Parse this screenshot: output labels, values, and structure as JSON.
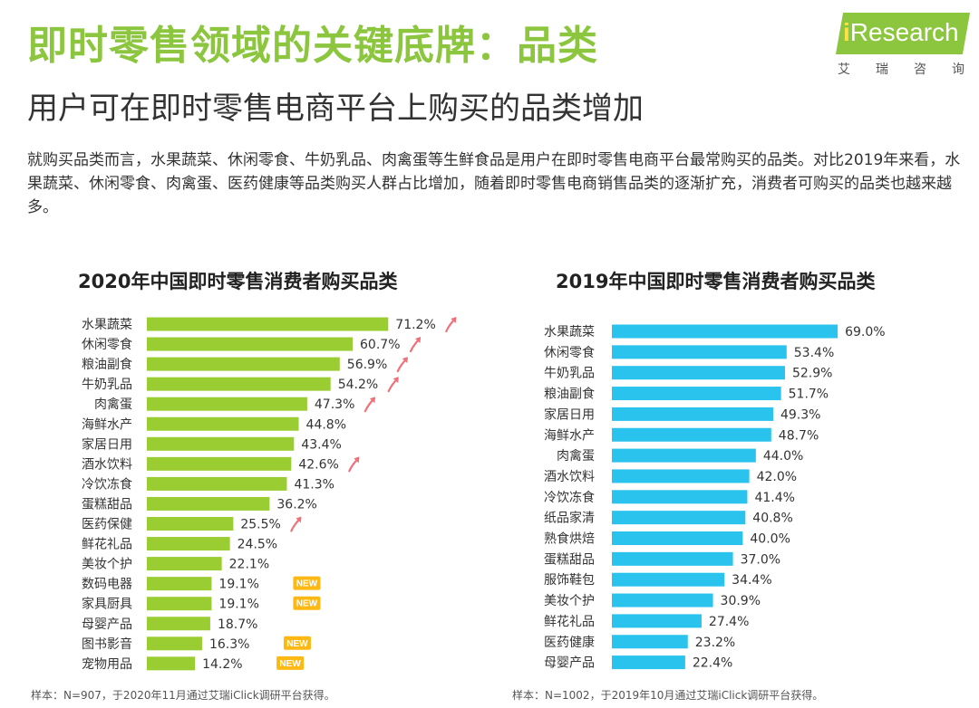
{
  "header": {
    "title": "即时零售领域的关键底牌：品类",
    "subtitle": "用户可在即时零售电商平台上购买的品类增加"
  },
  "logo": {
    "word_prefix": "i",
    "word_rest": "Research",
    "sub_chars": [
      "艾",
      "瑞",
      "咨",
      "询"
    ]
  },
  "intro": "就购买品类而言，水果蔬菜、休闲零食、牛奶乳品、肉禽蛋等生鲜食品是用户在即时零售电商平台最常购买的品类。对比2019年来看，水果蔬菜、休闲零食、肉禽蛋、医药健康等品类购买人群占比增加，随着即时零售电商销售品类的逐渐扩充，消费者可购买的品类也越来越多。",
  "colors": {
    "brand_green": "#8cc63f",
    "bar_2020": "#9acd32",
    "bar_2019": "#29c3ee",
    "arrow_up": "#f0707a",
    "new_badge": "#fdb813"
  },
  "chart_data": [
    {
      "type": "bar",
      "orientation": "horizontal",
      "title": "2020年中国即时零售消费者购买品类",
      "categories": [
        "水果蔬菜",
        "休闲零食",
        "粮油副食",
        "牛奶乳品",
        "肉禽蛋",
        "海鲜水产",
        "家居日用",
        "酒水饮料",
        "冷饮冻食",
        "蛋糕甜品",
        "医药保健",
        "鲜花礼品",
        "美妆个护",
        "数码电器",
        "家具厨具",
        "母婴产品",
        "图书影音",
        "宠物用品"
      ],
      "values": [
        71.2,
        60.7,
        56.9,
        54.2,
        47.3,
        44.8,
        43.4,
        42.6,
        41.3,
        36.2,
        25.5,
        24.5,
        22.1,
        19.1,
        19.1,
        18.7,
        16.3,
        14.2
      ],
      "value_labels": [
        "71.2%",
        "60.7%",
        "56.9%",
        "54.2%",
        "47.3%",
        "44.8%",
        "43.4%",
        "42.6%",
        "41.3%",
        "36.2%",
        "25.5%",
        "24.5%",
        "22.1%",
        "19.1%",
        "19.1%",
        "18.7%",
        "16.3%",
        "14.2%"
      ],
      "increased": [
        true,
        true,
        true,
        true,
        true,
        false,
        false,
        true,
        false,
        false,
        true,
        false,
        false,
        false,
        false,
        false,
        false,
        false
      ],
      "new_items": [
        false,
        false,
        false,
        false,
        false,
        false,
        false,
        false,
        false,
        false,
        false,
        false,
        false,
        true,
        true,
        false,
        true,
        true
      ],
      "new_label": "NEW",
      "unit": "%",
      "note": "样本：N=907，于2020年11月通过艾瑞iClick调研平台获得。"
    },
    {
      "type": "bar",
      "orientation": "horizontal",
      "title": "2019年中国即时零售消费者购买品类",
      "categories": [
        "水果蔬菜",
        "休闲零食",
        "牛奶乳品",
        "粮油副食",
        "家居日用",
        "海鲜水产",
        "肉禽蛋",
        "酒水饮料",
        "冷饮冻食",
        "纸品家清",
        "熟食烘焙",
        "蛋糕甜品",
        "服饰鞋包",
        "美妆个护",
        "鲜花礼品",
        "医药健康",
        "母婴产品"
      ],
      "values": [
        69.0,
        53.4,
        52.9,
        51.7,
        49.3,
        48.7,
        44.0,
        42.0,
        41.4,
        40.8,
        40.0,
        37.0,
        34.4,
        30.9,
        27.4,
        23.2,
        22.4
      ],
      "value_labels": [
        "69.0%",
        "53.4%",
        "52.9%",
        "51.7%",
        "49.3%",
        "48.7%",
        "44.0%",
        "42.0%",
        "41.4%",
        "40.8%",
        "40.0%",
        "37.0%",
        "34.4%",
        "30.9%",
        "27.4%",
        "23.2%",
        "22.4%"
      ],
      "unit": "%",
      "note": "样本：N=1002，于2019年10月通过艾瑞iClick调研平台获得。"
    }
  ]
}
